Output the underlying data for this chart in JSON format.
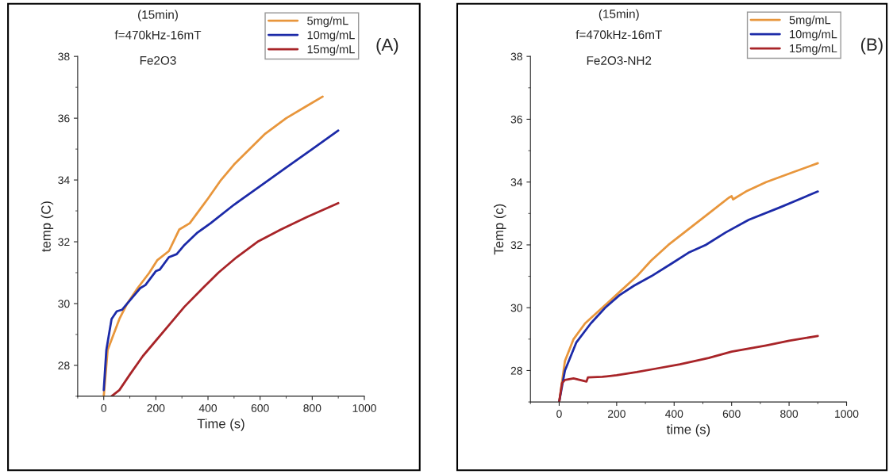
{
  "chart_data": [
    {
      "type": "line",
      "xlabel": "Time (s)",
      "ylabel": "temp (C)",
      "annotations": [
        "(15min)",
        "f=470kHz-16mT",
        "Fe2O3",
        "(A)"
      ],
      "xlim": [
        -100,
        1000
      ],
      "ylim": [
        27,
        38
      ],
      "xticks": [
        0,
        200,
        400,
        600,
        800,
        1000
      ],
      "yticks": [
        28,
        30,
        32,
        34,
        36,
        38
      ],
      "legend": "top right",
      "grid": false,
      "series": [
        {
          "name": "5mg/mL",
          "color": "#e8963c",
          "x": [
            0,
            15,
            60,
            90,
            130,
            175,
            205,
            250,
            290,
            330,
            400,
            450,
            500,
            560,
            620,
            700,
            780,
            840
          ],
          "values": [
            27,
            28.5,
            29.5,
            30,
            30.5,
            31,
            31.4,
            31.7,
            32.4,
            32.6,
            33.4,
            34.0,
            34.5,
            35.0,
            35.5,
            36.0,
            36.4,
            36.7
          ]
        },
        {
          "name": "10mg/mL",
          "color": "#1c2aa8",
          "x": [
            0,
            10,
            30,
            50,
            70,
            100,
            140,
            160,
            200,
            215,
            250,
            280,
            310,
            360,
            410,
            500,
            600,
            700,
            800,
            900
          ],
          "values": [
            27.2,
            28.5,
            29.5,
            29.75,
            29.8,
            30.1,
            30.5,
            30.6,
            31.05,
            31.1,
            31.5,
            31.6,
            31.9,
            32.3,
            32.6,
            33.2,
            33.8,
            34.4,
            35.0,
            35.6
          ]
        },
        {
          "name": "15mg/mL",
          "color": "#a82428",
          "x": [
            30,
            60,
            100,
            150,
            200,
            260,
            310,
            380,
            440,
            510,
            590,
            680,
            780,
            900
          ],
          "values": [
            27,
            27.2,
            27.7,
            28.3,
            28.8,
            29.4,
            29.9,
            30.5,
            31.0,
            31.5,
            32.0,
            32.4,
            32.8,
            33.25
          ]
        }
      ]
    },
    {
      "type": "line",
      "xlabel": "time (s)",
      "ylabel": "Temp (c)",
      "annotations": [
        "(15min)",
        "f=470kHz-16mT",
        "Fe2O3-NH2",
        "(B)"
      ],
      "xlim": [
        -100,
        1000
      ],
      "ylim": [
        27,
        38
      ],
      "xticks": [
        0,
        200,
        400,
        600,
        800,
        1000
      ],
      "yticks": [
        28,
        30,
        32,
        34,
        36,
        38
      ],
      "legend": "top right",
      "grid": false,
      "series": [
        {
          "name": "5mg/mL",
          "color": "#e8963c",
          "x": [
            0,
            20,
            50,
            90,
            150,
            210,
            270,
            320,
            380,
            450,
            520,
            590,
            600,
            605,
            650,
            720,
            810,
            900
          ],
          "values": [
            27,
            28.3,
            29,
            29.5,
            30,
            30.5,
            31,
            31.5,
            32,
            32.5,
            33,
            33.5,
            33.55,
            33.45,
            33.7,
            34.0,
            34.3,
            34.6
          ]
        },
        {
          "name": "10mg/mL",
          "color": "#1c2aa8",
          "x": [
            0,
            20,
            60,
            110,
            160,
            210,
            260,
            320,
            390,
            450,
            510,
            580,
            660,
            770,
            900
          ],
          "values": [
            27,
            28,
            28.9,
            29.5,
            30.0,
            30.4,
            30.7,
            31,
            31.4,
            31.75,
            32.0,
            32.4,
            32.8,
            33.2,
            33.7
          ]
        },
        {
          "name": "15mg/mL",
          "color": "#a82428",
          "x": [
            0,
            10,
            20,
            50,
            95,
            100,
            150,
            200,
            270,
            330,
            420,
            520,
            600,
            720,
            800,
            900
          ],
          "values": [
            27,
            27.6,
            27.7,
            27.75,
            27.65,
            27.78,
            27.8,
            27.85,
            27.95,
            28.05,
            28.2,
            28.4,
            28.6,
            28.8,
            28.95,
            29.1
          ]
        }
      ]
    }
  ]
}
